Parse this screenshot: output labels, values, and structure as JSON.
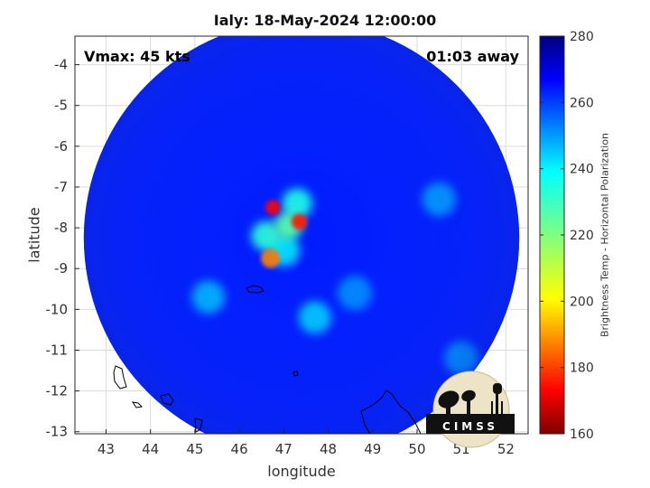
{
  "chart_data": {
    "type": "heatmap",
    "title": "Ialy: 18-May-2024 12:00:00",
    "xlabel": "longitude",
    "ylabel": "latitude",
    "xlim": [
      42.3,
      52.5
    ],
    "ylim": [
      -13.05,
      -3.3
    ],
    "xticks": [
      43,
      44,
      45,
      46,
      47,
      48,
      49,
      50,
      51,
      52
    ],
    "yticks": [
      -4,
      -5,
      -6,
      -7,
      -8,
      -9,
      -10,
      -11,
      -12,
      -13
    ],
    "grid": true,
    "annotations": {
      "vmax": "Vmax: 45 kts",
      "time_offset": "01:03 away"
    },
    "colorbar": {
      "label": "Brightness Temp - Horizontal Polarization",
      "min": 160,
      "max": 280,
      "ticks": [
        160,
        180,
        200,
        220,
        240,
        260,
        280
      ],
      "colormap": "jet"
    },
    "swath": {
      "center_lon": 47.4,
      "center_lat": -8.25,
      "radius_deg": 4.9,
      "background_temp": 262
    },
    "features": [
      {
        "lon": 46.75,
        "lat": -7.5,
        "temp": 175
      },
      {
        "lon": 47.35,
        "lat": -7.85,
        "temp": 178
      },
      {
        "lon": 46.7,
        "lat": -8.75,
        "temp": 190
      },
      {
        "lon": 47.1,
        "lat": -7.95,
        "temp": 225
      },
      {
        "lon": 47.3,
        "lat": -7.4,
        "temp": 232
      },
      {
        "lon": 46.6,
        "lat": -8.2,
        "temp": 230
      },
      {
        "lon": 47.0,
        "lat": -8.55,
        "temp": 238
      },
      {
        "lon": 47.7,
        "lat": -10.2,
        "temp": 240
      },
      {
        "lon": 45.3,
        "lat": -9.7,
        "temp": 242
      },
      {
        "lon": 50.5,
        "lat": -7.3,
        "temp": 245
      },
      {
        "lon": 51.0,
        "lat": -11.2,
        "temp": 245
      },
      {
        "lon": 48.6,
        "lat": -9.6,
        "temp": 248
      }
    ],
    "colors": {
      "background": "#ffffff",
      "axes": "#262626",
      "grid": "#dcdcdc",
      "coast": "#000000"
    }
  },
  "logo": {
    "text": "CIMSS"
  }
}
